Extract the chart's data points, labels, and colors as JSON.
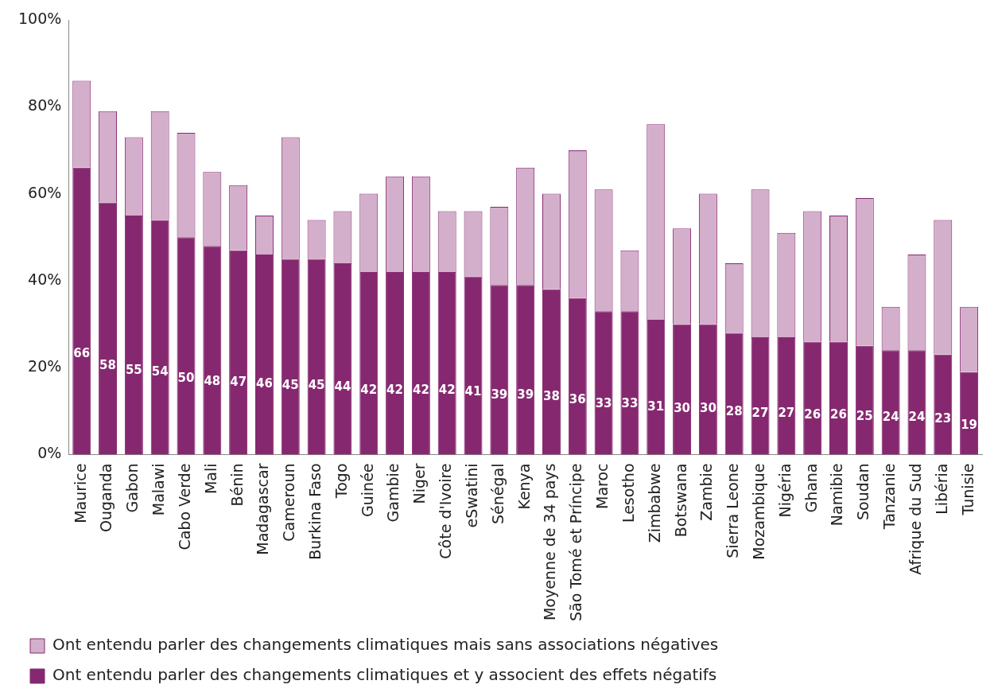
{
  "chart_data": {
    "type": "bar",
    "stacked": true,
    "legend": "bottom",
    "grid": false,
    "categories": [
      "Maurice",
      "Ouganda",
      "Gabon",
      "Malawi",
      "Cabo Verde",
      "Mali",
      "Bénin",
      "Madagascar",
      "Cameroun",
      "Burkina Faso",
      "Togo",
      "Guinée",
      "Gambie",
      "Niger",
      "Côte d'Ivoire",
      "eSwatini",
      "Sénégal",
      "Kenya",
      "Moyenne de 34 pays",
      "São Tomé et Príncipe",
      "Maroc",
      "Lesotho",
      "Zimbabwe",
      "Botswana",
      "Zambie",
      "Sierra Leone",
      "Mozambique",
      "Nigéria",
      "Ghana",
      "Namibie",
      "Soudan",
      "Tanzanie",
      "Afrique du Sud",
      "Libéria",
      "Tunisie"
    ],
    "ylim": [
      0,
      100
    ],
    "yticks": [
      {
        "value": 0,
        "label": "0%"
      },
      {
        "value": 20,
        "label": "20%"
      },
      {
        "value": 40,
        "label": "40%"
      },
      {
        "value": 60,
        "label": "60%"
      },
      {
        "value": 80,
        "label": "80%"
      },
      {
        "value": 100,
        "label": "100%"
      }
    ],
    "series": [
      {
        "name": "Ont entendu parler des changements climatiques et y associent des effets négatifs",
        "color": "#86286f",
        "values": [
          66,
          58,
          55,
          54,
          50,
          48,
          47,
          46,
          45,
          45,
          44,
          42,
          42,
          42,
          42,
          41,
          39,
          39,
          38,
          36,
          33,
          33,
          31,
          30,
          30,
          28,
          27,
          27,
          26,
          26,
          25,
          24,
          24,
          23,
          19
        ],
        "value_labels": [
          "66",
          "58",
          "55",
          "54",
          "50",
          "48",
          "47",
          "46",
          "45",
          "45",
          "44",
          "42",
          "42",
          "42",
          "42",
          "41",
          "39",
          "39",
          "38",
          "36",
          "33",
          "33",
          "31",
          "30",
          "30",
          "28",
          "27",
          "27",
          "26",
          "26",
          "25",
          "24",
          "24",
          "23",
          "19"
        ]
      },
      {
        "name": "Ont entendu parler des changements climatiques mais sans associations négatives",
        "color": "#d4afcb",
        "values": [
          20,
          21,
          18,
          25,
          24,
          17,
          15,
          9,
          28,
          9,
          12,
          18,
          22,
          22,
          14,
          15,
          18,
          27,
          22,
          34,
          28,
          14,
          45,
          22,
          30,
          16,
          34,
          24,
          30,
          29,
          34,
          10,
          22,
          31,
          15
        ]
      }
    ]
  }
}
